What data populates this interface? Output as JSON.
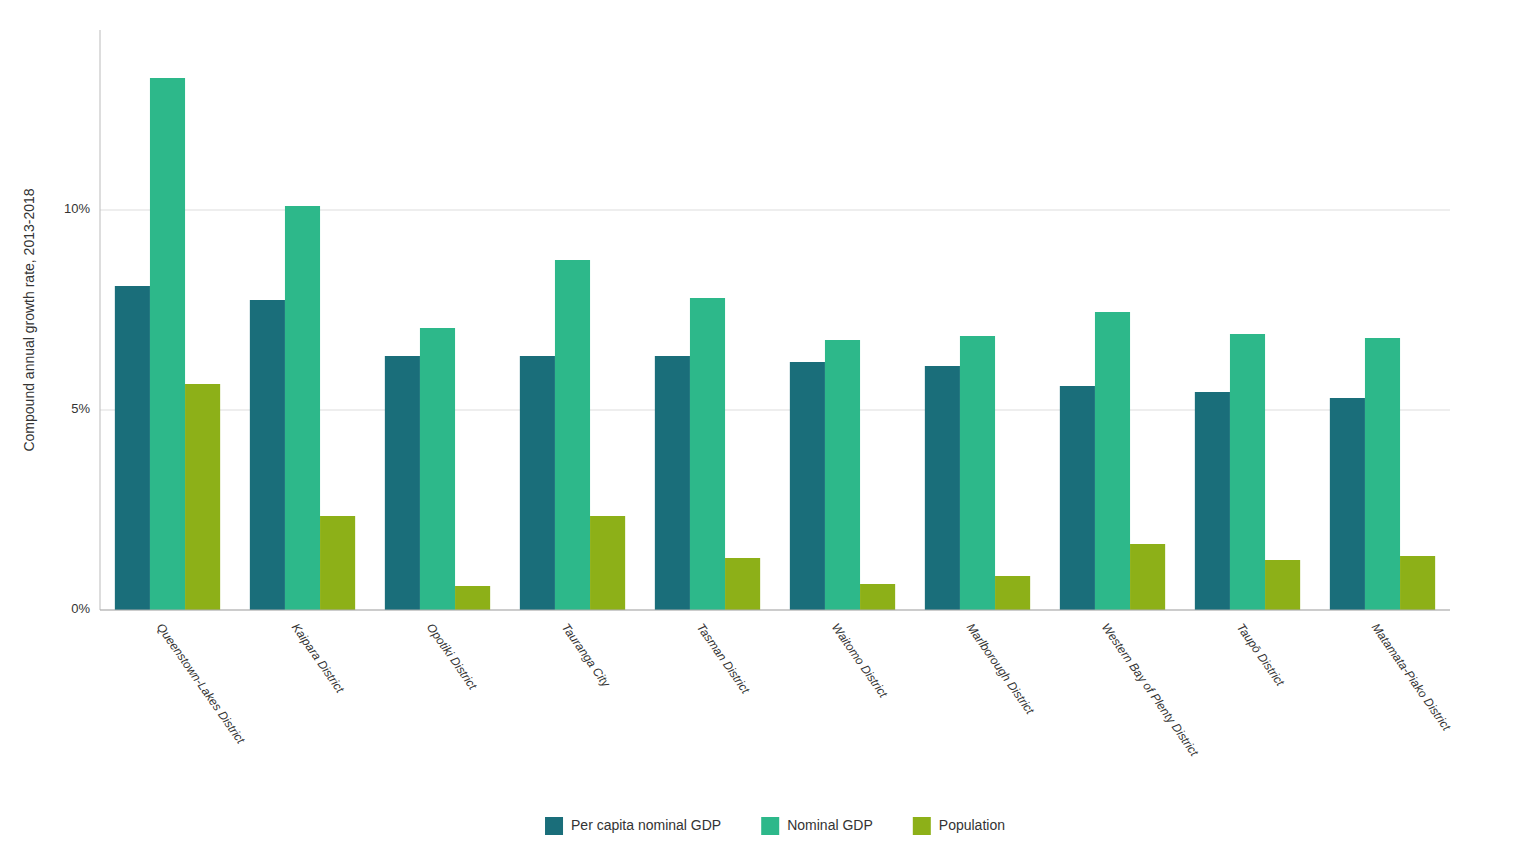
{
  "chart_data": {
    "type": "bar",
    "categories": [
      "Queenstown-Lakes District",
      "Kaipara District",
      "Opotiki District",
      "Tauranga City",
      "Tasman District",
      "Waitomo District",
      "Marlborough District",
      "Western Bay of Plenty District",
      "Taupō District",
      "Matamata-Piako District"
    ],
    "series": [
      {
        "name": "Per capita nominal GDP",
        "color": "#1a6e7a",
        "values": [
          8.1,
          7.75,
          6.35,
          6.35,
          6.35,
          6.2,
          6.1,
          5.6,
          5.45,
          5.3
        ]
      },
      {
        "name": "Nominal GDP",
        "color": "#2db88a",
        "values": [
          13.3,
          10.1,
          7.05,
          8.75,
          7.8,
          6.75,
          6.85,
          7.45,
          6.9,
          6.8
        ]
      },
      {
        "name": "Population",
        "color": "#8db018",
        "values": [
          5.65,
          2.35,
          0.6,
          2.35,
          1.3,
          0.65,
          0.85,
          1.65,
          1.25,
          1.35
        ]
      }
    ],
    "ylabel": "Compound annual growth rate, 2013-2018",
    "ylim": [
      0,
      14.5
    ],
    "yticks": [
      {
        "value": 0,
        "label": "0%"
      },
      {
        "value": 5,
        "label": "5%"
      },
      {
        "value": 10,
        "label": "10%"
      }
    ],
    "grid": true,
    "legend": "bottom"
  }
}
